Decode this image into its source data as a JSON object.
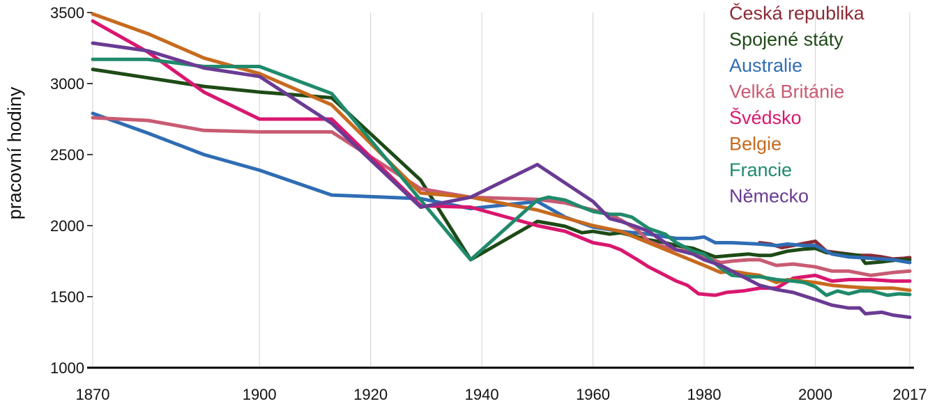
{
  "chart_data": {
    "type": "line",
    "ylabel": "pracovní hodiny",
    "xlim": [
      1870,
      2017
    ],
    "ylim": [
      1000,
      3500
    ],
    "x_ticks": [
      1870,
      1900,
      1920,
      1940,
      1960,
      1980,
      2000,
      2017
    ],
    "y_ticks": [
      1000,
      1500,
      2000,
      2500,
      3000,
      3500
    ],
    "grid": true,
    "legend_position": "top-right",
    "series": [
      {
        "name": "Česká republika",
        "color": "#8b2a35",
        "points": [
          [
            1990,
            1880
          ],
          [
            1992,
            1870
          ],
          [
            1994,
            1845
          ],
          [
            1996,
            1860
          ],
          [
            1998,
            1875
          ],
          [
            2000,
            1890
          ],
          [
            2002,
            1820
          ],
          [
            2004,
            1810
          ],
          [
            2006,
            1800
          ],
          [
            2008,
            1790
          ],
          [
            2010,
            1790
          ],
          [
            2012,
            1780
          ],
          [
            2014,
            1765
          ],
          [
            2016,
            1770
          ],
          [
            2017,
            1775
          ]
        ]
      },
      {
        "name": "Spojené státy",
        "color": "#1e4a16",
        "points": [
          [
            1870,
            3100
          ],
          [
            1880,
            3040
          ],
          [
            1890,
            2980
          ],
          [
            1900,
            2940
          ],
          [
            1913,
            2900
          ],
          [
            1929,
            2320
          ],
          [
            1938,
            1760
          ],
          [
            1950,
            2030
          ],
          [
            1953,
            2010
          ],
          [
            1955,
            1995
          ],
          [
            1958,
            1950
          ],
          [
            1960,
            1960
          ],
          [
            1963,
            1940
          ],
          [
            1965,
            1950
          ],
          [
            1970,
            1900
          ],
          [
            1973,
            1880
          ],
          [
            1975,
            1860
          ],
          [
            1978,
            1840
          ],
          [
            1980,
            1810
          ],
          [
            1982,
            1780
          ],
          [
            1985,
            1790
          ],
          [
            1988,
            1800
          ],
          [
            1990,
            1790
          ],
          [
            1992,
            1790
          ],
          [
            1995,
            1820
          ],
          [
            1998,
            1835
          ],
          [
            2000,
            1840
          ],
          [
            2002,
            1810
          ],
          [
            2005,
            1800
          ],
          [
            2008,
            1790
          ],
          [
            2009,
            1735
          ],
          [
            2012,
            1745
          ],
          [
            2015,
            1760
          ],
          [
            2017,
            1760
          ]
        ]
      },
      {
        "name": "Australie",
        "color": "#2f6db4",
        "points": [
          [
            1870,
            2790
          ],
          [
            1880,
            2650
          ],
          [
            1890,
            2500
          ],
          [
            1900,
            2390
          ],
          [
            1913,
            2215
          ],
          [
            1929,
            2190
          ],
          [
            1938,
            2120
          ],
          [
            1950,
            2170
          ],
          [
            1955,
            2060
          ],
          [
            1960,
            1990
          ],
          [
            1965,
            1960
          ],
          [
            1970,
            1940
          ],
          [
            1975,
            1910
          ],
          [
            1978,
            1910
          ],
          [
            1980,
            1920
          ],
          [
            1982,
            1880
          ],
          [
            1985,
            1880
          ],
          [
            1990,
            1870
          ],
          [
            1993,
            1860
          ],
          [
            1995,
            1870
          ],
          [
            1998,
            1860
          ],
          [
            2000,
            1860
          ],
          [
            2003,
            1800
          ],
          [
            2006,
            1780
          ],
          [
            2010,
            1770
          ],
          [
            2014,
            1760
          ],
          [
            2017,
            1740
          ]
        ]
      },
      {
        "name": "Velká Británie",
        "color": "#c85b72",
        "points": [
          [
            1870,
            2760
          ],
          [
            1880,
            2740
          ],
          [
            1890,
            2670
          ],
          [
            1900,
            2660
          ],
          [
            1913,
            2660
          ],
          [
            1929,
            2260
          ],
          [
            1938,
            2200
          ],
          [
            1950,
            2185
          ],
          [
            1955,
            2160
          ],
          [
            1960,
            2110
          ],
          [
            1963,
            2080
          ],
          [
            1965,
            2040
          ],
          [
            1968,
            1970
          ],
          [
            1970,
            1890
          ],
          [
            1972,
            1860
          ],
          [
            1975,
            1830
          ],
          [
            1978,
            1820
          ],
          [
            1980,
            1780
          ],
          [
            1983,
            1740
          ],
          [
            1985,
            1750
          ],
          [
            1988,
            1760
          ],
          [
            1990,
            1760
          ],
          [
            1993,
            1720
          ],
          [
            1996,
            1730
          ],
          [
            2000,
            1710
          ],
          [
            2003,
            1680
          ],
          [
            2006,
            1680
          ],
          [
            2010,
            1650
          ],
          [
            2014,
            1670
          ],
          [
            2017,
            1680
          ]
        ]
      },
      {
        "name": "Švédsko",
        "color": "#d9176f",
        "points": [
          [
            1870,
            3440
          ],
          [
            1880,
            3220
          ],
          [
            1890,
            2940
          ],
          [
            1900,
            2750
          ],
          [
            1913,
            2750
          ],
          [
            1929,
            2140
          ],
          [
            1938,
            2130
          ],
          [
            1950,
            2000
          ],
          [
            1955,
            1960
          ],
          [
            1960,
            1880
          ],
          [
            1963,
            1860
          ],
          [
            1965,
            1830
          ],
          [
            1968,
            1760
          ],
          [
            1970,
            1710
          ],
          [
            1973,
            1650
          ],
          [
            1975,
            1610
          ],
          [
            1977,
            1580
          ],
          [
            1979,
            1520
          ],
          [
            1982,
            1510
          ],
          [
            1984,
            1530
          ],
          [
            1987,
            1540
          ],
          [
            1990,
            1560
          ],
          [
            1993,
            1560
          ],
          [
            1996,
            1630
          ],
          [
            2000,
            1650
          ],
          [
            2003,
            1610
          ],
          [
            2006,
            1620
          ],
          [
            2010,
            1620
          ],
          [
            2014,
            1610
          ],
          [
            2017,
            1610
          ]
        ]
      },
      {
        "name": "Belgie",
        "color": "#c76a1e",
        "points": [
          [
            1870,
            3490
          ],
          [
            1880,
            3350
          ],
          [
            1890,
            3180
          ],
          [
            1900,
            3070
          ],
          [
            1913,
            2850
          ],
          [
            1929,
            2230
          ],
          [
            1938,
            2200
          ],
          [
            1950,
            2110
          ],
          [
            1960,
            2000
          ],
          [
            1965,
            1960
          ],
          [
            1970,
            1880
          ],
          [
            1975,
            1800
          ],
          [
            1980,
            1720
          ],
          [
            1983,
            1670
          ],
          [
            1985,
            1680
          ],
          [
            1988,
            1660
          ],
          [
            1990,
            1650
          ],
          [
            1993,
            1600
          ],
          [
            1995,
            1620
          ],
          [
            2000,
            1600
          ],
          [
            2003,
            1580
          ],
          [
            2006,
            1570
          ],
          [
            2010,
            1560
          ],
          [
            2014,
            1560
          ],
          [
            2017,
            1545
          ]
        ]
      },
      {
        "name": "Francie",
        "color": "#208a6b",
        "points": [
          [
            1870,
            3170
          ],
          [
            1880,
            3170
          ],
          [
            1890,
            3120
          ],
          [
            1900,
            3120
          ],
          [
            1913,
            2930
          ],
          [
            1929,
            2180
          ],
          [
            1938,
            1760
          ],
          [
            1950,
            2180
          ],
          [
            1952,
            2200
          ],
          [
            1955,
            2180
          ],
          [
            1958,
            2130
          ],
          [
            1960,
            2100
          ],
          [
            1963,
            2080
          ],
          [
            1965,
            2080
          ],
          [
            1967,
            2060
          ],
          [
            1970,
            1980
          ],
          [
            1973,
            1940
          ],
          [
            1975,
            1880
          ],
          [
            1978,
            1820
          ],
          [
            1980,
            1800
          ],
          [
            1983,
            1700
          ],
          [
            1985,
            1650
          ],
          [
            1988,
            1640
          ],
          [
            1990,
            1640
          ],
          [
            1993,
            1620
          ],
          [
            1996,
            1610
          ],
          [
            1998,
            1600
          ],
          [
            2000,
            1570
          ],
          [
            2002,
            1510
          ],
          [
            2004,
            1540
          ],
          [
            2006,
            1520
          ],
          [
            2008,
            1540
          ],
          [
            2010,
            1540
          ],
          [
            2013,
            1510
          ],
          [
            2015,
            1520
          ],
          [
            2017,
            1515
          ]
        ]
      },
      {
        "name": "Německo",
        "color": "#6a3b93",
        "points": [
          [
            1870,
            3285
          ],
          [
            1880,
            3230
          ],
          [
            1890,
            3110
          ],
          [
            1900,
            3050
          ],
          [
            1913,
            2720
          ],
          [
            1929,
            2130
          ],
          [
            1938,
            2200
          ],
          [
            1950,
            2430
          ],
          [
            1955,
            2300
          ],
          [
            1960,
            2170
          ],
          [
            1963,
            2050
          ],
          [
            1965,
            2030
          ],
          [
            1968,
            1990
          ],
          [
            1970,
            1960
          ],
          [
            1973,
            1880
          ],
          [
            1975,
            1830
          ],
          [
            1978,
            1800
          ],
          [
            1980,
            1760
          ],
          [
            1983,
            1720
          ],
          [
            1985,
            1680
          ],
          [
            1988,
            1620
          ],
          [
            1990,
            1580
          ],
          [
            1993,
            1550
          ],
          [
            1996,
            1530
          ],
          [
            2000,
            1480
          ],
          [
            2003,
            1440
          ],
          [
            2006,
            1420
          ],
          [
            2008,
            1420
          ],
          [
            2009,
            1380
          ],
          [
            2012,
            1390
          ],
          [
            2014,
            1370
          ],
          [
            2017,
            1355
          ]
        ]
      }
    ]
  }
}
